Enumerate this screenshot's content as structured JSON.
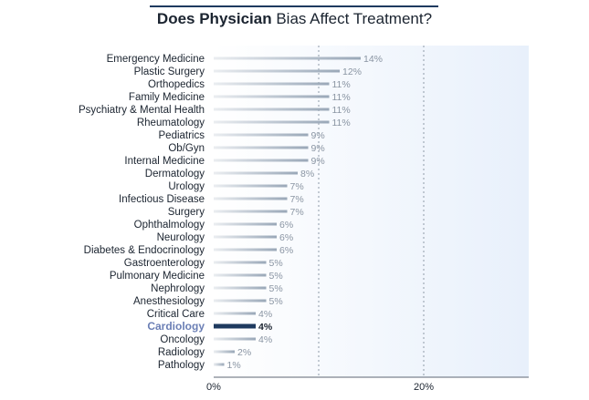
{
  "title": {
    "bold": "Does Physician",
    "rest": "Bias Affect Treatment?"
  },
  "colors": {
    "bar": "#9aa8b8",
    "highlight_bar": "#1e3a5f",
    "highlight_label": "#6b7fb5",
    "label": "#1b2430",
    "value_label": "#8a95a3",
    "panel_start": "#ffffff",
    "panel_end": "#e8f0fb"
  },
  "chart_data": {
    "type": "bar",
    "orientation": "horizontal",
    "title": "Does Physician Bias Affect Treatment?",
    "xlim": [
      0,
      30
    ],
    "xticks": [
      0,
      20
    ],
    "xtick_labels": [
      "0%",
      "20%"
    ],
    "gridlines": [
      10,
      20
    ],
    "highlight": "Cardiology",
    "categories": [
      "Emergency Medicine",
      "Plastic Surgery",
      "Orthopedics",
      "Family Medicine",
      "Psychiatry & Mental Health",
      "Rheumatology",
      "Pediatrics",
      "Ob/Gyn",
      "Internal Medicine",
      "Dermatology",
      "Urology",
      "Infectious Disease",
      "Surgery",
      "Ophthalmology",
      "Neurology",
      "Diabetes & Endocrinology",
      "Gastroenterology",
      "Pulmonary Medicine",
      "Nephrology",
      "Anesthesiology",
      "Critical Care",
      "Cardiology",
      "Oncology",
      "Radiology",
      "Pathology"
    ],
    "values": [
      14,
      12,
      11,
      11,
      11,
      11,
      9,
      9,
      9,
      8,
      7,
      7,
      7,
      6,
      6,
      6,
      5,
      5,
      5,
      5,
      4,
      4,
      4,
      2,
      1
    ],
    "value_labels": [
      "14%",
      "12%",
      "11%",
      "11%",
      "11%",
      "11%",
      "9%",
      "9%",
      "9%",
      "8%",
      "7%",
      "7%",
      "7%",
      "6%",
      "6%",
      "6%",
      "5%",
      "5%",
      "5%",
      "5%",
      "4%",
      "4%",
      "4%",
      "2%",
      "1%"
    ]
  }
}
